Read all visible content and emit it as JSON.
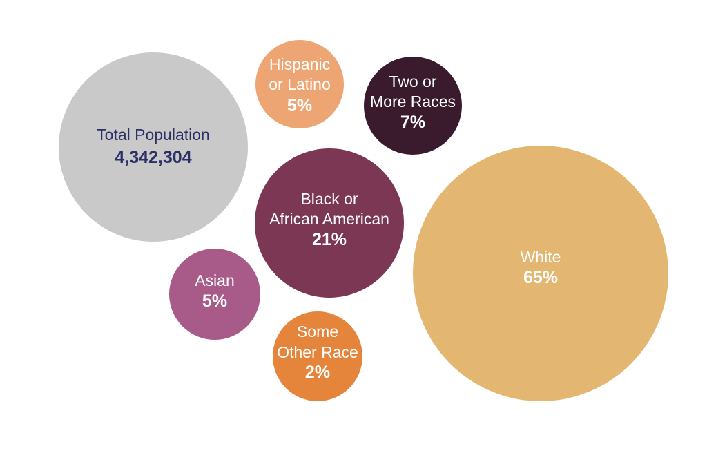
{
  "chart_data": {
    "type": "bubble",
    "total": {
      "lines": [
        "Total Population"
      ],
      "value": "4,342,304",
      "count": 4342304,
      "color": "#c9c9c9",
      "text_color": "#2b2f66"
    },
    "bubbles": [
      {
        "key": "hispanic",
        "lines": [
          "Hispanic",
          "or Latino"
        ],
        "value": "5%",
        "percent": 5,
        "color": "#eda574",
        "text_color": "#ffffff"
      },
      {
        "key": "two-or-more",
        "lines": [
          "Two or",
          "More Races"
        ],
        "value": "7%",
        "percent": 7,
        "color": "#3a1a2d",
        "text_color": "#ffffff"
      },
      {
        "key": "black",
        "lines": [
          "Black or",
          "African American"
        ],
        "value": "21%",
        "percent": 21,
        "color": "#7b3753",
        "text_color": "#ffffff"
      },
      {
        "key": "asian",
        "lines": [
          "Asian"
        ],
        "value": "5%",
        "percent": 5,
        "color": "#a85a88",
        "text_color": "#ffffff"
      },
      {
        "key": "some-other",
        "lines": [
          "Some",
          "Other Race"
        ],
        "value": "2%",
        "percent": 2,
        "color": "#e5853c",
        "text_color": "#ffffff"
      },
      {
        "key": "white",
        "lines": [
          "White"
        ],
        "value": "65%",
        "percent": 65,
        "color": "#e3b772",
        "text_color": "#ffffff"
      }
    ]
  }
}
